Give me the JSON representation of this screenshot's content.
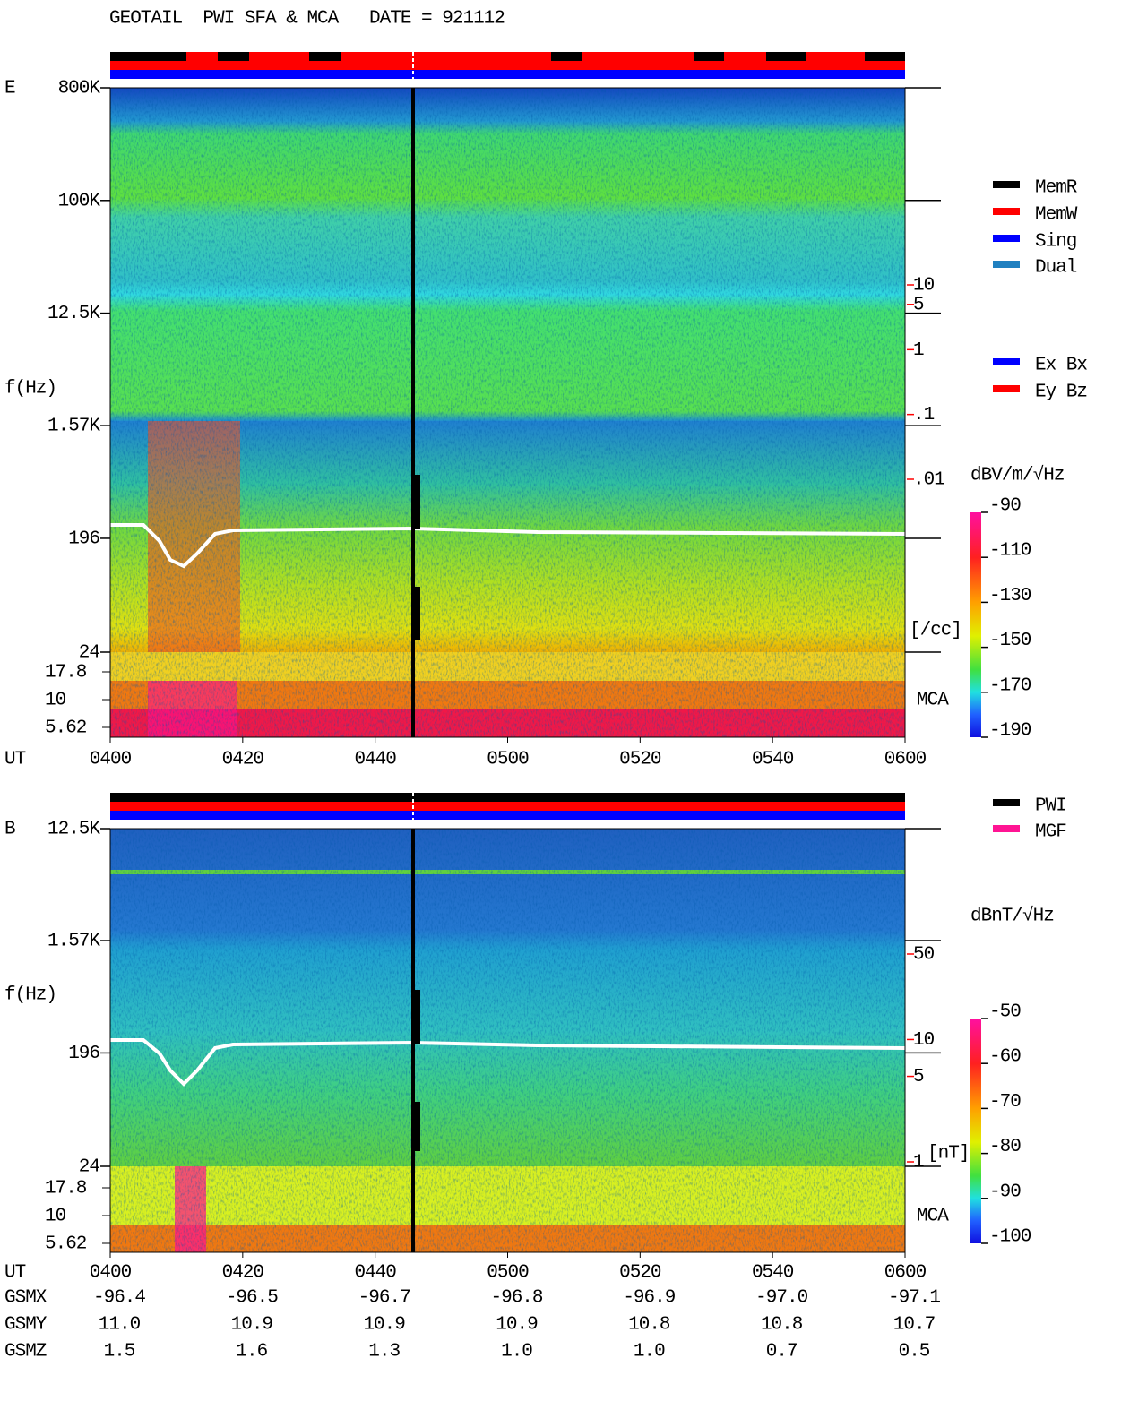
{
  "title": "GEOTAIL  PWI SFA & MCA   DATE = 921112",
  "time_axis": {
    "label": "UT",
    "ticks": [
      "0400",
      "0420",
      "0440",
      "0500",
      "0520",
      "0540",
      "0600"
    ]
  },
  "panels": [
    {
      "label": "E",
      "freq_axis": {
        "label": "f(Hz)",
        "scale": "log",
        "ylim": [
          24,
          800000
        ],
        "ticks": [
          {
            "value": 800000,
            "label": "800K"
          },
          {
            "value": 100000,
            "label": "100K"
          },
          {
            "value": 12500,
            "label": "12.5K"
          },
          {
            "value": 1570,
            "label": "1.57K"
          },
          196,
          24
        ]
      },
      "mca_axis": {
        "label": "MCA",
        "scale": "log",
        "ylim": [
          5.62,
          17.8
        ],
        "ticks": [
          17.8,
          10,
          5.62
        ]
      },
      "right_axis": {
        "label": "[/cc]",
        "scale": "log",
        "color": "#ff0000",
        "ylim": [
          0.01,
          10
        ],
        "ticks": [
          10,
          5,
          1,
          {
            "value": 0.1,
            "label": ".1"
          },
          {
            "value": 0.01,
            "label": ".01"
          }
        ]
      },
      "colorbar": {
        "label": "dBV/m/√Hz",
        "lim": [
          -190,
          -90
        ],
        "ticks": [
          -90,
          -110,
          -130,
          -150,
          -170,
          -190
        ]
      },
      "legend": [
        [
          {
            "name": "MemR",
            "color": "#000000"
          },
          {
            "name": "MemW",
            "color": "#ff0000"
          },
          {
            "name": "Sing",
            "color": "#0000ff"
          },
          {
            "name": "Dual",
            "color": "#2080c0"
          }
        ],
        [
          {
            "name": "Ex Bx",
            "color": "#0000ff"
          },
          {
            "name": "Ey Bz",
            "color": "#ff0000"
          }
        ]
      ]
    },
    {
      "label": "B",
      "freq_axis": {
        "label": "f(Hz)",
        "scale": "log",
        "ylim": [
          24,
          12500
        ],
        "ticks": [
          {
            "value": 12500,
            "label": "12.5K"
          },
          {
            "value": 1570,
            "label": "1.57K"
          },
          196,
          24
        ]
      },
      "mca_axis": {
        "label": "MCA",
        "scale": "log",
        "ylim": [
          5.62,
          17.8
        ],
        "ticks": [
          17.8,
          10,
          5.62
        ]
      },
      "right_axis": {
        "label": "[nT]",
        "scale": "log",
        "color": "#ff0000",
        "ylim": [
          1,
          50
        ],
        "ticks": [
          50,
          10,
          5,
          1
        ]
      },
      "colorbar": {
        "label": "dBnT/√Hz",
        "lim": [
          -100,
          -50
        ],
        "ticks": [
          -50,
          -60,
          -70,
          -80,
          -90,
          -100
        ]
      },
      "legend": [
        [
          {
            "name": "PWI",
            "color": "#000000"
          },
          {
            "name": "MGF",
            "color": "#ff1493"
          }
        ]
      ]
    }
  ],
  "ephemeris": [
    {
      "label": "GSMX",
      "values": [
        "-96.4",
        "-96.5",
        "-96.7",
        "-96.8",
        "-96.9",
        "-97.0",
        "-97.1"
      ]
    },
    {
      "label": "GSMY",
      "values": [
        "11.0",
        "10.9",
        "10.9",
        "10.9",
        "10.8",
        "10.8",
        "10.7"
      ]
    },
    {
      "label": "GSMZ",
      "values": [
        "1.5",
        "1.6",
        "1.3",
        "1.0",
        "1.0",
        "0.7",
        "0.5"
      ]
    }
  ]
}
